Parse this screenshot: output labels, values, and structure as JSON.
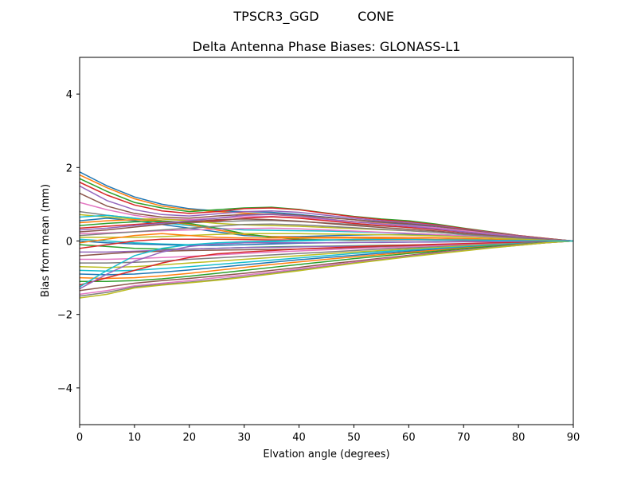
{
  "chart_data": {
    "type": "line",
    "suptitle_left": "TPSCR3_GGD",
    "suptitle_right": "CONE",
    "title": "Delta Antenna Phase Biases: GLONASS-L1",
    "xlabel": "Elvation angle (degrees)",
    "ylabel": "Bias from mean (mm)",
    "xlim": [
      0,
      90
    ],
    "ylim": [
      -5,
      5
    ],
    "xticks": [
      0,
      10,
      20,
      30,
      40,
      50,
      60,
      70,
      80,
      90
    ],
    "xtick_labels": [
      "0",
      "10",
      "20",
      "30",
      "40",
      "50",
      "60",
      "70",
      "80",
      "90"
    ],
    "yticks": [
      -4,
      -2,
      0,
      2,
      4
    ],
    "ytick_labels": [
      "−4",
      "−2",
      "0",
      "2",
      "4"
    ],
    "grid": false,
    "legend": "none",
    "colors": [
      "#1f77b4",
      "#ff7f0e",
      "#2ca02c",
      "#d62728",
      "#9467bd",
      "#8c564b",
      "#e377c2",
      "#7f7f7f",
      "#bcbd22",
      "#17becf"
    ],
    "x": [
      0,
      5,
      10,
      15,
      20,
      25,
      30,
      35,
      40,
      45,
      50,
      55,
      60,
      65,
      70,
      75,
      80,
      85,
      90
    ],
    "series": [
      {
        "values": [
          1.88,
          1.5,
          1.2,
          1.0,
          0.88,
          0.82,
          0.8,
          0.78,
          0.72,
          0.65,
          0.58,
          0.5,
          0.45,
          0.37,
          0.28,
          0.2,
          0.12,
          0.06,
          0
        ]
      },
      {
        "values": [
          1.8,
          1.45,
          1.15,
          0.95,
          0.85,
          0.8,
          0.76,
          0.72,
          0.67,
          0.6,
          0.53,
          0.48,
          0.42,
          0.35,
          0.27,
          0.19,
          0.12,
          0.05,
          0
        ]
      },
      {
        "values": [
          1.7,
          1.35,
          1.05,
          0.9,
          0.8,
          0.85,
          0.9,
          0.92,
          0.86,
          0.76,
          0.67,
          0.6,
          0.55,
          0.46,
          0.35,
          0.25,
          0.15,
          0.07,
          0
        ]
      },
      {
        "values": [
          1.6,
          1.25,
          0.98,
          0.82,
          0.75,
          0.8,
          0.88,
          0.9,
          0.85,
          0.75,
          0.66,
          0.58,
          0.52,
          0.44,
          0.34,
          0.24,
          0.15,
          0.07,
          0
        ]
      },
      {
        "values": [
          1.5,
          1.1,
          0.85,
          0.72,
          0.68,
          0.74,
          0.8,
          0.82,
          0.78,
          0.7,
          0.62,
          0.55,
          0.5,
          0.42,
          0.32,
          0.23,
          0.14,
          0.06,
          0
        ]
      },
      {
        "values": [
          1.3,
          0.95,
          0.75,
          0.65,
          0.62,
          0.68,
          0.72,
          0.74,
          0.7,
          0.64,
          0.58,
          0.52,
          0.47,
          0.4,
          0.31,
          0.22,
          0.13,
          0.06,
          0
        ]
      },
      {
        "values": [
          1.05,
          0.85,
          0.7,
          0.6,
          0.58,
          0.62,
          0.66,
          0.67,
          0.63,
          0.58,
          0.52,
          0.47,
          0.42,
          0.36,
          0.28,
          0.2,
          0.12,
          0.05,
          0
        ]
      },
      {
        "values": [
          0.8,
          0.7,
          0.62,
          0.55,
          0.5,
          0.52,
          0.55,
          0.56,
          0.53,
          0.49,
          0.45,
          0.41,
          0.37,
          0.32,
          0.25,
          0.18,
          0.11,
          0.05,
          0
        ]
      },
      {
        "values": [
          0.72,
          0.65,
          0.6,
          0.6,
          0.55,
          0.48,
          0.44,
          0.42,
          0.4,
          0.37,
          0.34,
          0.31,
          0.28,
          0.24,
          0.19,
          0.14,
          0.09,
          0.04,
          0
        ]
      },
      {
        "values": [
          0.65,
          0.7,
          0.62,
          0.5,
          0.42,
          0.35,
          0.3,
          0.29,
          0.28,
          0.27,
          0.25,
          0.23,
          0.21,
          0.18,
          0.15,
          0.11,
          0.07,
          0.03,
          0
        ]
      },
      {
        "values": [
          0.55,
          0.62,
          0.55,
          0.45,
          0.35,
          0.25,
          0.15,
          0.12,
          0.12,
          0.14,
          0.16,
          0.17,
          0.18,
          0.16,
          0.13,
          0.1,
          0.06,
          0.03,
          0
        ]
      },
      {
        "values": [
          0.5,
          0.55,
          0.58,
          0.55,
          0.45,
          0.3,
          0.18,
          0.12,
          0.1,
          0.1,
          0.1,
          0.1,
          0.1,
          0.09,
          0.07,
          0.05,
          0.03,
          0.01,
          0
        ]
      },
      {
        "values": [
          0.42,
          0.48,
          0.52,
          0.54,
          0.48,
          0.35,
          0.2,
          0.1,
          0.05,
          0.03,
          0.02,
          0.03,
          0.04,
          0.04,
          0.03,
          0.02,
          0.01,
          0.0,
          0
        ]
      },
      {
        "values": [
          0.35,
          0.4,
          0.45,
          0.5,
          0.52,
          0.55,
          0.62,
          0.66,
          0.62,
          0.55,
          0.48,
          0.42,
          0.37,
          0.31,
          0.24,
          0.17,
          0.1,
          0.04,
          0
        ]
      },
      {
        "values": [
          0.3,
          0.35,
          0.42,
          0.48,
          0.55,
          0.62,
          0.7,
          0.72,
          0.68,
          0.6,
          0.52,
          0.46,
          0.4,
          0.33,
          0.25,
          0.18,
          0.11,
          0.05,
          0
        ]
      },
      {
        "values": [
          0.25,
          0.3,
          0.38,
          0.45,
          0.52,
          0.58,
          0.6,
          0.58,
          0.54,
          0.48,
          0.42,
          0.37,
          0.32,
          0.27,
          0.21,
          0.15,
          0.09,
          0.04,
          0
        ]
      },
      {
        "values": [
          0.2,
          0.22,
          0.25,
          0.28,
          0.3,
          0.32,
          0.34,
          0.35,
          0.33,
          0.3,
          0.27,
          0.24,
          0.21,
          0.18,
          0.14,
          0.1,
          0.06,
          0.03,
          0
        ]
      },
      {
        "values": [
          0.15,
          0.2,
          0.25,
          0.3,
          0.35,
          0.4,
          0.45,
          0.46,
          0.44,
          0.4,
          0.36,
          0.32,
          0.28,
          0.24,
          0.18,
          0.13,
          0.08,
          0.03,
          0
        ]
      },
      {
        "values": [
          0.1,
          0.1,
          0.1,
          0.12,
          0.15,
          0.18,
          0.2,
          0.2,
          0.2,
          0.19,
          0.18,
          0.17,
          0.16,
          0.14,
          0.11,
          0.08,
          0.05,
          0.02,
          0
        ]
      },
      {
        "values": [
          0.05,
          0.0,
          -0.05,
          -0.08,
          -0.1,
          -0.08,
          -0.05,
          -0.02,
          0.0,
          0.02,
          0.04,
          0.05,
          0.06,
          0.05,
          0.04,
          0.03,
          0.02,
          0.01,
          0
        ]
      },
      {
        "values": [
          0.0,
          -0.05,
          -0.08,
          -0.1,
          -0.12,
          -0.12,
          -0.1,
          -0.08,
          -0.06,
          -0.05,
          -0.04,
          -0.03,
          -0.03,
          -0.02,
          -0.02,
          -0.01,
          -0.01,
          0.0,
          0
        ]
      },
      {
        "values": [
          -0.05,
          0.05,
          0.15,
          0.2,
          0.15,
          0.1,
          0.08,
          0.08,
          0.08,
          0.08,
          0.08,
          0.07,
          0.06,
          0.05,
          0.04,
          0.03,
          0.02,
          0.01,
          0
        ]
      },
      {
        "values": [
          -0.1,
          -0.15,
          -0.2,
          -0.22,
          -0.22,
          -0.2,
          -0.18,
          -0.16,
          -0.15,
          -0.14,
          -0.13,
          -0.12,
          -0.11,
          -0.1,
          -0.08,
          -0.06,
          -0.04,
          -0.02,
          0
        ]
      },
      {
        "values": [
          -0.2,
          -0.1,
          0.0,
          0.05,
          0.05,
          0.05,
          0.04,
          0.03,
          0.03,
          0.03,
          0.03,
          0.03,
          0.03,
          0.03,
          0.02,
          0.02,
          0.01,
          0.0,
          0
        ]
      },
      {
        "values": [
          -0.3,
          -0.3,
          -0.28,
          -0.25,
          -0.22,
          -0.2,
          -0.18,
          -0.17,
          -0.16,
          -0.15,
          -0.14,
          -0.13,
          -0.12,
          -0.1,
          -0.08,
          -0.06,
          -0.04,
          -0.02,
          0
        ]
      },
      {
        "values": [
          -0.4,
          -0.35,
          -0.3,
          -0.28,
          -0.26,
          -0.25,
          -0.24,
          -0.23,
          -0.22,
          -0.2,
          -0.18,
          -0.16,
          -0.14,
          -0.12,
          -0.1,
          -0.07,
          -0.05,
          -0.02,
          0
        ]
      },
      {
        "values": [
          -0.5,
          -0.5,
          -0.48,
          -0.45,
          -0.42,
          -0.38,
          -0.34,
          -0.3,
          -0.27,
          -0.24,
          -0.21,
          -0.18,
          -0.16,
          -0.13,
          -0.1,
          -0.07,
          -0.05,
          -0.02,
          0
        ]
      },
      {
        "values": [
          -0.6,
          -0.6,
          -0.58,
          -0.55,
          -0.5,
          -0.46,
          -0.42,
          -0.38,
          -0.34,
          -0.3,
          -0.26,
          -0.22,
          -0.19,
          -0.16,
          -0.12,
          -0.09,
          -0.06,
          -0.03,
          0
        ]
      },
      {
        "values": [
          -0.7,
          -0.72,
          -0.7,
          -0.65,
          -0.6,
          -0.55,
          -0.5,
          -0.45,
          -0.4,
          -0.35,
          -0.3,
          -0.26,
          -0.22,
          -0.18,
          -0.14,
          -0.1,
          -0.07,
          -0.03,
          0
        ]
      },
      {
        "values": [
          -0.8,
          -0.82,
          -0.8,
          -0.75,
          -0.7,
          -0.64,
          -0.58,
          -0.52,
          -0.46,
          -0.4,
          -0.34,
          -0.29,
          -0.25,
          -0.2,
          -0.16,
          -0.11,
          -0.07,
          -0.03,
          0
        ]
      },
      {
        "values": [
          -0.9,
          -0.92,
          -0.9,
          -0.85,
          -0.79,
          -0.72,
          -0.65,
          -0.58,
          -0.51,
          -0.45,
          -0.39,
          -0.33,
          -0.28,
          -0.23,
          -0.18,
          -0.13,
          -0.08,
          -0.04,
          0
        ]
      },
      {
        "values": [
          -1.0,
          -1.02,
          -1.0,
          -0.95,
          -0.88,
          -0.8,
          -0.72,
          -0.64,
          -0.57,
          -0.5,
          -0.43,
          -0.37,
          -0.31,
          -0.25,
          -0.19,
          -0.14,
          -0.09,
          -0.04,
          0
        ]
      },
      {
        "values": [
          -1.1,
          -1.1,
          -1.08,
          -1.03,
          -0.96,
          -0.88,
          -0.8,
          -0.72,
          -0.64,
          -0.56,
          -0.48,
          -0.41,
          -0.34,
          -0.28,
          -0.21,
          -0.15,
          -0.1,
          -0.04,
          0
        ]
      },
      {
        "values": [
          -1.2,
          -1.0,
          -0.8,
          -0.6,
          -0.45,
          -0.35,
          -0.3,
          -0.26,
          -0.22,
          -0.19,
          -0.16,
          -0.13,
          -0.11,
          -0.09,
          -0.07,
          -0.05,
          -0.03,
          -0.01,
          0
        ]
      },
      {
        "values": [
          -1.3,
          -0.9,
          -0.55,
          -0.3,
          -0.15,
          -0.08,
          -0.05,
          -0.05,
          -0.05,
          -0.05,
          -0.04,
          -0.04,
          -0.03,
          -0.03,
          -0.02,
          -0.02,
          -0.01,
          0.0,
          0
        ]
      },
      {
        "values": [
          -1.35,
          -1.25,
          -1.15,
          -1.08,
          -1.02,
          -0.95,
          -0.88,
          -0.8,
          -0.72,
          -0.63,
          -0.55,
          -0.47,
          -0.39,
          -0.31,
          -0.24,
          -0.17,
          -0.11,
          -0.05,
          0
        ]
      },
      {
        "values": [
          -1.45,
          -1.35,
          -1.22,
          -1.15,
          -1.08,
          -1.0,
          -0.93,
          -0.85,
          -0.76,
          -0.67,
          -0.58,
          -0.49,
          -0.41,
          -0.33,
          -0.25,
          -0.18,
          -0.11,
          -0.05,
          0
        ]
      },
      {
        "values": [
          -1.5,
          -1.4,
          -1.25,
          -1.18,
          -1.12,
          -1.05,
          -0.97,
          -0.88,
          -0.79,
          -0.7,
          -0.6,
          -0.51,
          -0.42,
          -0.34,
          -0.26,
          -0.18,
          -0.12,
          -0.05,
          0
        ]
      },
      {
        "values": [
          -1.55,
          -1.45,
          -1.28,
          -1.2,
          -1.14,
          -1.07,
          -0.99,
          -0.9,
          -0.81,
          -0.71,
          -0.61,
          -0.52,
          -0.43,
          -0.35,
          -0.27,
          -0.19,
          -0.12,
          -0.05,
          0
        ]
      },
      {
        "values": [
          -1.25,
          -0.8,
          -0.4,
          -0.2,
          -0.1,
          -0.05,
          -0.02,
          0.0,
          0.02,
          0.03,
          0.04,
          0.04,
          0.04,
          0.03,
          0.03,
          0.02,
          0.01,
          0.0,
          0
        ]
      }
    ]
  }
}
